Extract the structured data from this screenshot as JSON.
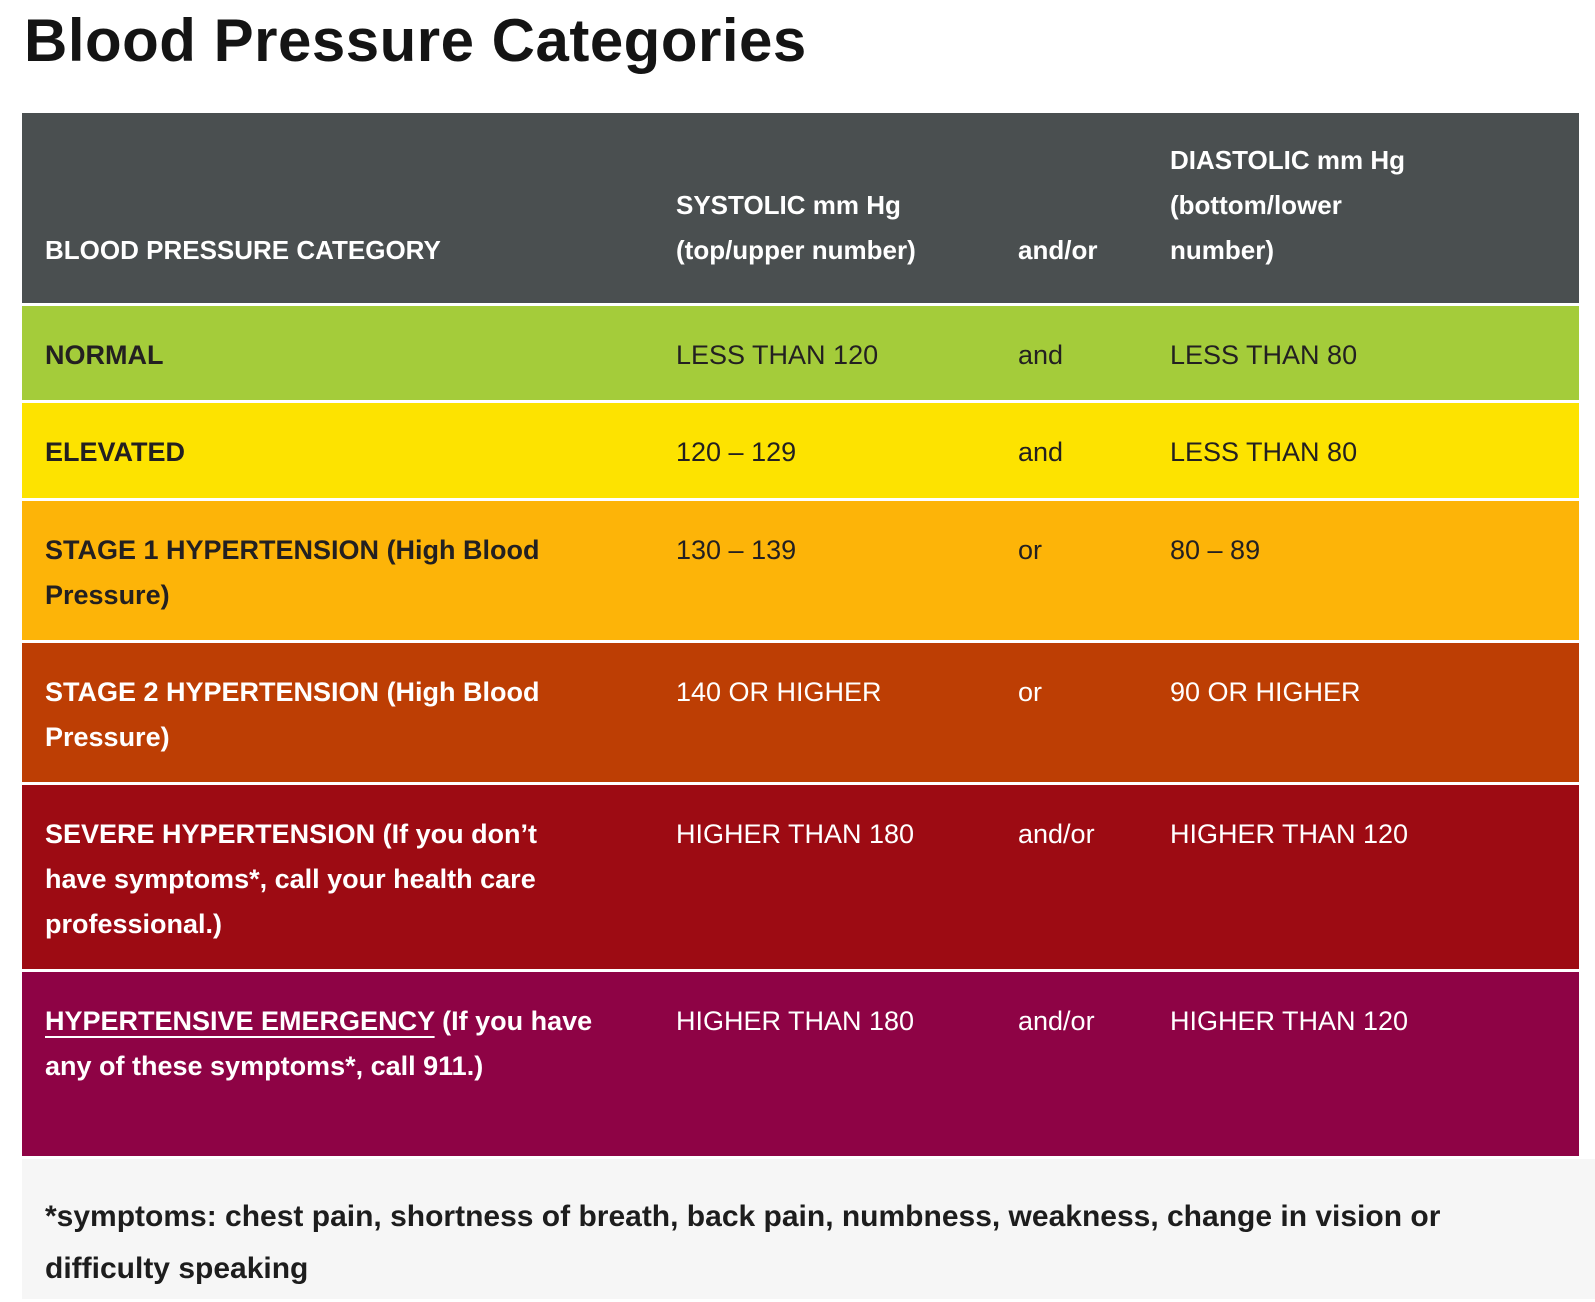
{
  "page": {
    "title": "Blood Pressure Categories"
  },
  "colors": {
    "header_bg": "#4a4f50",
    "header_fg": "#ffffff",
    "separator": "#ffffff",
    "footnote_bg": "#f6f6f6"
  },
  "table": {
    "header": {
      "category": "BLOOD PRESSURE CATEGORY",
      "systolic": "SYSTOLIC mm Hg (top/upper number)",
      "connector": "and/or",
      "diastolic": "DIASTOLIC mm Hg (bottom/lower number)"
    },
    "rows": [
      {
        "name": "NORMAL",
        "note": "",
        "underline": false,
        "systolic": "LESS THAN 120",
        "connector": "and",
        "diastolic": "LESS THAN 80",
        "bg": "#a4cc3a",
        "fg": "#232021"
      },
      {
        "name": "ELEVATED",
        "note": "",
        "underline": false,
        "systolic": "120 – 129",
        "connector": "and",
        "diastolic": "LESS THAN 80",
        "bg": "#fde300",
        "fg": "#232021"
      },
      {
        "name": "STAGE 1 HYPERTENSION",
        "note": "(High Blood Pressure)",
        "underline": false,
        "systolic": "130 – 139",
        "connector": "or",
        "diastolic": "80 – 89",
        "bg": "#fdb408",
        "fg": "#232021"
      },
      {
        "name": "STAGE 2 HYPERTENSION",
        "note": "(High Blood Pressure)",
        "underline": false,
        "systolic": "140 OR HIGHER",
        "connector": "or",
        "diastolic": "90 OR HIGHER",
        "bg": "#bd3e04",
        "fg": "#ffffff"
      },
      {
        "name": "SEVERE HYPERTENSION",
        "note": "(If you don’t have symptoms*, call your health care professional.)",
        "underline": false,
        "systolic": "HIGHER THAN 180",
        "connector": "and/or",
        "diastolic": "HIGHER THAN 120",
        "bg": "#9d0b13",
        "fg": "#ffffff"
      },
      {
        "name": "HYPERTENSIVE EMERGENCY",
        "note": "(If you have any of these symptoms*, call 911.)",
        "underline": true,
        "systolic": "HIGHER THAN 180",
        "connector": "and/or",
        "diastolic": "HIGHER THAN 120",
        "bg": "#8e0345",
        "fg": "#ffffff"
      }
    ]
  },
  "footnote": "*symptoms: chest pain, shortness of breath, back pain, numbness, weakness, change in vision or difficulty speaking",
  "chart_data": {
    "type": "table",
    "title": "Blood Pressure Categories",
    "columns": [
      "BLOOD PRESSURE CATEGORY",
      "SYSTOLIC mm Hg (top/upper number)",
      "and/or",
      "DIASTOLIC mm Hg (bottom/lower number)"
    ],
    "rows": [
      [
        "NORMAL",
        "LESS THAN 120",
        "and",
        "LESS THAN 80"
      ],
      [
        "ELEVATED",
        "120 – 129",
        "and",
        "LESS THAN 80"
      ],
      [
        "STAGE 1 HYPERTENSION (High Blood Pressure)",
        "130 – 139",
        "or",
        "80 – 89"
      ],
      [
        "STAGE 2 HYPERTENSION (High Blood Pressure)",
        "140 OR HIGHER",
        "or",
        "90 OR HIGHER"
      ],
      [
        "SEVERE HYPERTENSION (If you don’t have symptoms*, call your health care professional.)",
        "HIGHER THAN 180",
        "and/or",
        "HIGHER THAN 120"
      ],
      [
        "HYPERTENSIVE EMERGENCY (If you have any of these symptoms*, call 911.)",
        "HIGHER THAN 180",
        "and/or",
        "HIGHER THAN 120"
      ]
    ],
    "row_colors": [
      "#a4cc3a",
      "#fde300",
      "#fdb408",
      "#bd3e04",
      "#9d0b13",
      "#8e0345"
    ],
    "footnote": "*symptoms: chest pain, shortness of breath, back pain, numbness, weakness, change in vision or difficulty speaking"
  }
}
